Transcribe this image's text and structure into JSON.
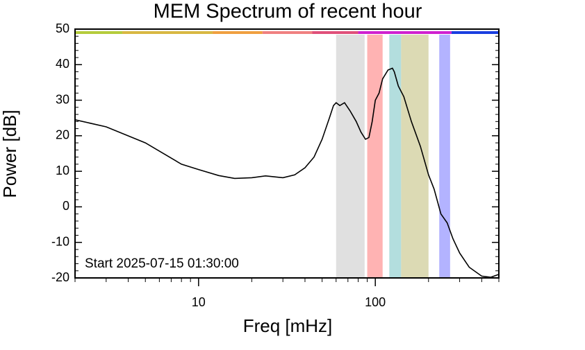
{
  "chart_data": {
    "type": "line",
    "title": "MEM Spectrum of recent hour",
    "xlabel": "Freq [mHz]",
    "ylabel": "Power [dB]",
    "annotation": "Start 2025-07-15 01:30:00",
    "xscale": "log",
    "xlim": [
      2,
      500
    ],
    "ylim": [
      -20,
      50
    ],
    "xticks": [
      10,
      100
    ],
    "xminor": [
      2,
      3,
      4,
      5,
      6,
      7,
      8,
      9,
      20,
      30,
      40,
      50,
      60,
      70,
      80,
      90,
      200,
      300,
      400,
      500
    ],
    "yticks": [
      -20,
      -10,
      0,
      10,
      20,
      30,
      40,
      50
    ],
    "yminor": [
      -18,
      -16,
      -14,
      -12,
      -8,
      -6,
      -4,
      -2,
      2,
      4,
      6,
      8,
      12,
      14,
      16,
      18,
      22,
      24,
      26,
      28,
      32,
      34,
      36,
      38,
      42,
      44,
      46,
      48
    ],
    "bands": [
      {
        "from": 60,
        "to": 87,
        "color": "#e0e0e0"
      },
      {
        "from": 90,
        "to": 110,
        "color": "#ffb3b3"
      },
      {
        "from": 120,
        "to": 140,
        "color": "#b3dede"
      },
      {
        "from": 140,
        "to": 200,
        "color": "#dcdab4"
      },
      {
        "from": 230,
        "to": 265,
        "color": "#b3b3ff"
      }
    ],
    "top_bar": [
      {
        "from": 2,
        "to": 3.7,
        "color": "#b5cc3c"
      },
      {
        "from": 3.7,
        "to": 12,
        "color": "#d8b842"
      },
      {
        "from": 12,
        "to": 23,
        "color": "#f0a040"
      },
      {
        "from": 23,
        "to": 44,
        "color": "#f08080"
      },
      {
        "from": 44,
        "to": 80,
        "color": "#e0507a"
      },
      {
        "from": 80,
        "to": 270,
        "color": "#d020d0"
      },
      {
        "from": 270,
        "to": 500,
        "color": "#1a3ee0"
      }
    ],
    "series": [
      {
        "color": "#000000",
        "x": [
          2,
          3,
          5,
          8,
          10,
          13,
          16,
          20,
          24,
          30,
          35,
          40,
          45,
          50,
          55,
          58,
          60,
          63,
          67,
          72,
          78,
          83,
          88,
          92,
          96,
          100,
          105,
          110,
          118,
          125,
          128,
          135,
          145,
          160,
          180,
          200,
          215,
          235,
          255,
          275,
          300,
          340,
          400,
          450,
          500
        ],
        "values": [
          24.5,
          22.5,
          18,
          12,
          10.5,
          8.8,
          8,
          8.2,
          8.7,
          8.2,
          9,
          11,
          14,
          19,
          25,
          28.5,
          29.3,
          28.5,
          29.3,
          27,
          24,
          21,
          19,
          19.5,
          24,
          30,
          32,
          36,
          38.5,
          39,
          38,
          34,
          31,
          24,
          17,
          9,
          5,
          -2,
          -4.5,
          -9,
          -13,
          -17,
          -19.5,
          -19.8,
          -19
        ]
      }
    ]
  }
}
